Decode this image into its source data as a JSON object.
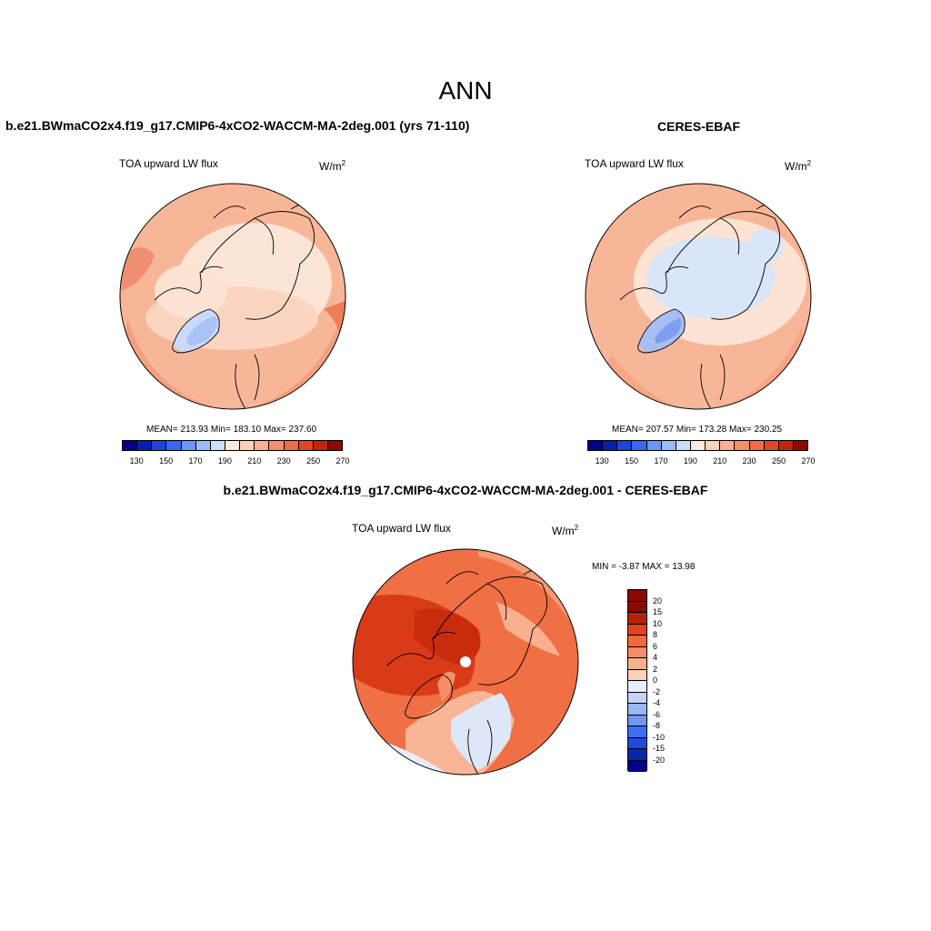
{
  "figure": {
    "title": "ANN"
  },
  "panels": [
    {
      "case_title": "b.e21.BWmaCO2x4.f19_g17.CMIP6-4xCO2-WACCM-MA-2deg.001 (yrs 71-110)",
      "variable": "TOA upward LW flux",
      "units": "W/m",
      "units_exp": "2",
      "stats": "MEAN= 213.93  Min= 183.10  Max= 237.60"
    },
    {
      "case_title": "CERES-EBAF",
      "variable": "TOA upward LW flux",
      "units": "W/m",
      "units_exp": "2",
      "stats": "MEAN= 207.57  Min= 173.28  Max= 230.25"
    },
    {
      "case_title": "b.e21.BWmaCO2x4.f19_g17.CMIP6-4xCO2-WACCM-MA-2deg.001 - CERES-EBAF",
      "variable": "TOA upward LW flux",
      "units": "W/m",
      "units_exp": "2",
      "stats": "MIN =  -3.87 MAX =  13.98"
    }
  ],
  "colorbar_abs": {
    "colors": [
      "#00008b",
      "#0a1fa8",
      "#1f43d6",
      "#3a66f0",
      "#6f96f5",
      "#9fbbf7",
      "#cddcf8",
      "#fde8dc",
      "#fdd0b9",
      "#fab094",
      "#f58f6f",
      "#ef6a48",
      "#e04628",
      "#c3230f",
      "#8a0a00"
    ],
    "labels": [
      "130",
      "150",
      "170",
      "190",
      "210",
      "230",
      "250",
      "270"
    ]
  },
  "colorbar_diff": {
    "colors": [
      "#8a0a00",
      "#b81f05",
      "#e04224",
      "#f26a3c",
      "#f58f69",
      "#f8b08f",
      "#fbd1b8",
      "#e7eefa",
      "#c3d4f7",
      "#9ab7f3",
      "#6f96f0",
      "#3f6ff0",
      "#1d49dc",
      "#0a25aa",
      "#00008b"
    ],
    "labels": [
      "20",
      "15",
      "10",
      "8",
      "6",
      "4",
      "2",
      "0",
      "-2",
      "-4",
      "-6",
      "-8",
      "-10",
      "-15",
      "-20"
    ]
  }
}
